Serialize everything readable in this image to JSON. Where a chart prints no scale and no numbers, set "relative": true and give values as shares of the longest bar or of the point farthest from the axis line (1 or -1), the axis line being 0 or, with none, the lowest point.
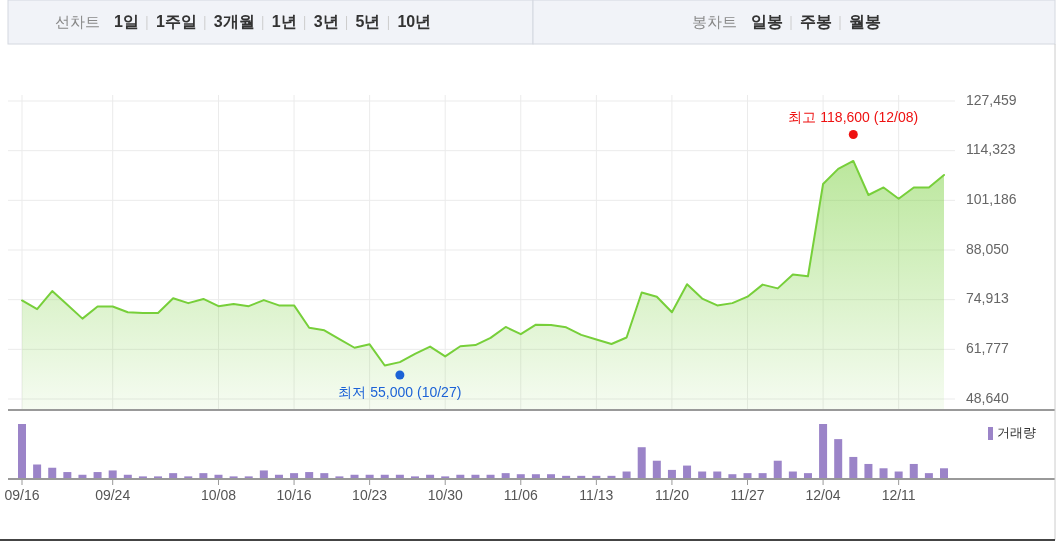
{
  "chart_data": [
    {
      "type": "other",
      "annotations": [
        "선차트",
        "1일",
        "1주일",
        "3개월",
        "1년",
        "3년",
        "5년",
        "10년"
      ]
    },
    {
      "type": "other",
      "annotations": [
        "봉차트",
        "일봉",
        "주봉",
        "월봉"
      ]
    },
    {
      "type": "area",
      "categories": [
        "09/16",
        null,
        null,
        null,
        null,
        null,
        "09/24",
        null,
        null,
        null,
        null,
        null,
        null,
        "10/08",
        null,
        null,
        null,
        null,
        "10/16",
        null,
        null,
        null,
        null,
        "10/23",
        null,
        null,
        null,
        null,
        "10/30",
        null,
        null,
        null,
        null,
        "11/06",
        null,
        null,
        null,
        null,
        "11/13",
        null,
        null,
        null,
        null,
        "11/20",
        null,
        null,
        null,
        null,
        "11/27",
        null,
        null,
        null,
        null,
        "12/04",
        null,
        null,
        null,
        null,
        "12/11",
        null,
        null,
        null
      ],
      "series": [
        {
          "color": "#77cf3a",
          "values": [
            74700,
            72400,
            77200,
            73600,
            69900,
            73100,
            73100,
            71600,
            71400,
            71400,
            75300,
            74000,
            75100,
            73200,
            73800,
            73200,
            74800,
            73400,
            73400,
            67500,
            66800,
            64500,
            62200,
            63100,
            57500,
            58400,
            60600,
            62500,
            59900,
            62600,
            62900,
            64800,
            67700,
            65800,
            68300,
            68200,
            67600,
            65600,
            64400,
            63200,
            64900,
            76800,
            75700,
            71600,
            79000,
            75200,
            73400,
            74000,
            75700,
            78900,
            77900,
            81600,
            81100,
            105500,
            109500,
            111600,
            102600,
            104600,
            101600,
            104600,
            104600,
            107900
          ]
        }
      ],
      "ylim": [
        46000,
        127459
      ],
      "yticks": [
        {
          "value": 48640,
          "label": "48,640"
        },
        {
          "value": 61777,
          "label": "61,777"
        },
        {
          "value": 74913,
          "label": "74,913"
        },
        {
          "value": 88050,
          "label": "88,050"
        },
        {
          "value": 101186,
          "label": "101,186"
        },
        {
          "value": 114323,
          "label": "114,323"
        },
        {
          "value": 127459,
          "label": "127,459"
        }
      ],
      "grid": true,
      "tick_labels": "y",
      "annotations": [
        {
          "text": "최고 118,600 (12/08)",
          "y": 118600
        },
        {
          "text": "최저 55,000 (10/27)",
          "y": 55000
        }
      ]
    },
    {
      "type": "bar",
      "relative": true,
      "categories": [
        "09/16",
        null,
        null,
        null,
        null,
        null,
        "09/24",
        null,
        null,
        null,
        null,
        null,
        null,
        "10/08",
        null,
        null,
        null,
        null,
        "10/16",
        null,
        null,
        null,
        null,
        "10/23",
        null,
        null,
        null,
        null,
        "10/30",
        null,
        null,
        null,
        null,
        "11/06",
        null,
        null,
        null,
        null,
        "11/13",
        null,
        null,
        null,
        null,
        "11/20",
        null,
        null,
        null,
        null,
        "11/27",
        null,
        null,
        null,
        null,
        "12/04",
        null,
        null,
        null,
        null,
        "12/11",
        null,
        null,
        null
      ],
      "series": [
        {
          "name": "거래량",
          "color": "#9b84c8",
          "values": [
            1,
            0.25,
            0.19,
            0.11,
            0.06,
            0.11,
            0.14,
            0.06,
            0.03,
            0.03,
            0.09,
            0.03,
            0.09,
            0.06,
            0.03,
            0.03,
            0.14,
            0.06,
            0.09,
            0.11,
            0.09,
            0.03,
            0.06,
            0.06,
            0.06,
            0.06,
            0.03,
            0.06,
            0.03,
            0.06,
            0.06,
            0.06,
            0.09,
            0.07,
            0.07,
            0.07,
            0.04,
            0.04,
            0.04,
            0.04,
            0.12,
            0.57,
            0.32,
            0.15,
            0.23,
            0.12,
            0.12,
            0.07,
            0.09,
            0.09,
            0.32,
            0.12,
            0.09,
            1,
            0.72,
            0.39,
            0.26,
            0.18,
            0.12,
            0.26,
            0.09,
            0.18
          ]
        }
      ],
      "legend": "top right",
      "tick_labels": "x"
    }
  ]
}
